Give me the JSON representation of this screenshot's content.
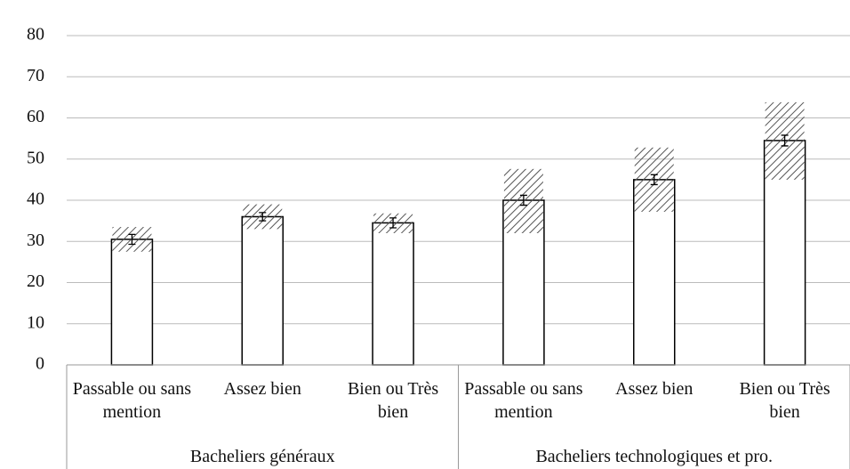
{
  "chart_data": {
    "type": "bar",
    "color": "#ffffff",
    "edge_color": "#000000",
    "hatch_color": "#555555",
    "grid": true,
    "ylim": [
      0,
      80
    ],
    "yticks": [
      0,
      10,
      20,
      30,
      40,
      50,
      60,
      70,
      80
    ],
    "groups": [
      {
        "name": "Bacheliers généraux",
        "categories": [
          "Passable ou sans mention",
          "Assez bien",
          "Bien ou Très bien"
        ],
        "values": [
          30.5,
          36,
          34.5
        ],
        "errors": [
          1.2,
          1,
          1.2
        ],
        "ci": [
          [
            27.5,
            33.5
          ],
          [
            33,
            39
          ],
          [
            32,
            36.8
          ]
        ]
      },
      {
        "name": "Bacheliers technologiques et pro.",
        "categories": [
          "Passable ou sans mention",
          "Assez bien",
          "Bien ou Très bien"
        ],
        "values": [
          40,
          45,
          54.5
        ],
        "errors": [
          1.2,
          1.2,
          1.3
        ],
        "ci": [
          [
            32,
            47.6
          ],
          [
            37.2,
            52.8
          ],
          [
            45,
            63.8
          ]
        ]
      }
    ]
  }
}
